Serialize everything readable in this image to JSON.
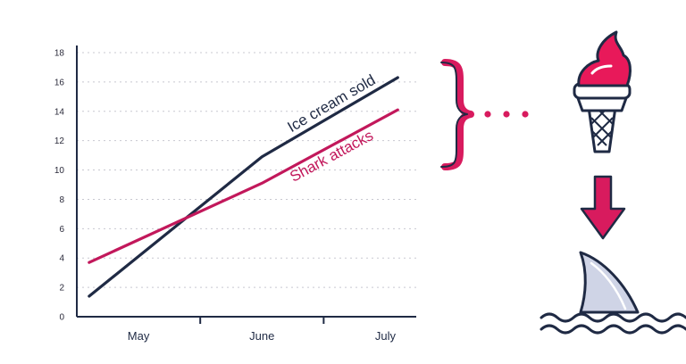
{
  "chart_data": {
    "type": "line",
    "categories": [
      "May",
      "June",
      "July"
    ],
    "x": [
      0.5,
      1.5,
      2.5
    ],
    "xlim": [
      0,
      2.75
    ],
    "ylim": [
      0,
      18
    ],
    "yticks": [
      0,
      2,
      4,
      6,
      8,
      10,
      12,
      14,
      16,
      18
    ],
    "grid": "horizontal dotted",
    "series": [
      {
        "name": "Ice cream sold",
        "x": [
          0.1,
          1.5,
          2.6
        ],
        "values": [
          1.4,
          10.9,
          16.3
        ],
        "color": "#1f2a44"
      },
      {
        "name": "Shark attacks",
        "x": [
          0.1,
          1.5,
          2.6
        ],
        "values": [
          3.7,
          9.1,
          14.1
        ],
        "color": "#c2185b"
      }
    ]
  },
  "illustration": {
    "brace_color": "#d81b5e",
    "dots_color": "#d81b5e",
    "icons": [
      "ice-cream-icon",
      "down-arrow-icon",
      "shark-fin-icon"
    ],
    "accent": "#e8195a",
    "outline": "#1f2a44"
  }
}
